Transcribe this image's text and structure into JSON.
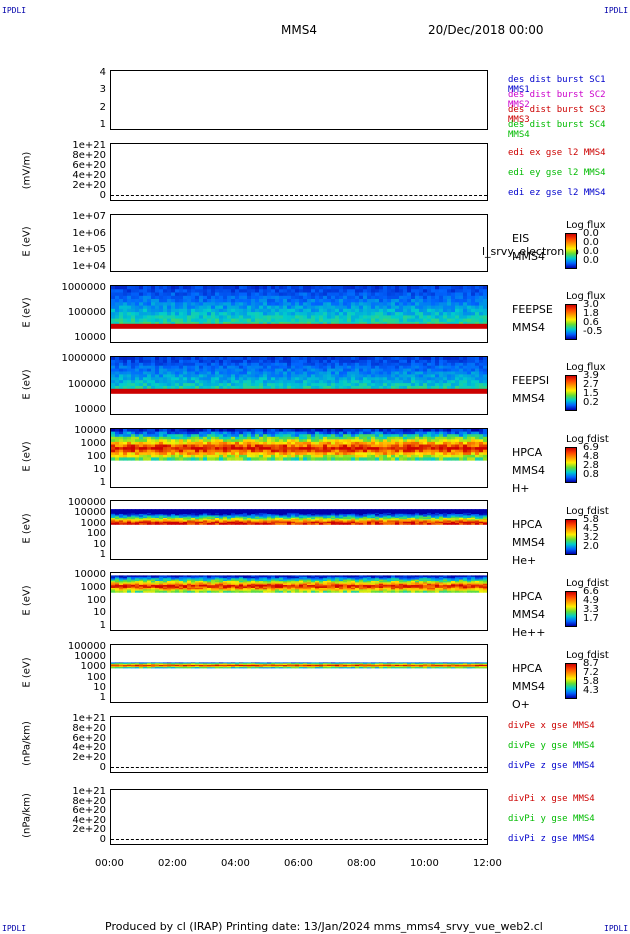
{
  "corners": {
    "tl": "IPDLI",
    "tr": "IPDLI",
    "bl": "IPDLI",
    "br": "IPDLI"
  },
  "header": {
    "spacecraft": "MMS4",
    "date": "20/Dec/2018 00:00"
  },
  "footer": {
    "text": "Produced by cl (IRAP)   Printing date: 13/Jan/2024   mms_mms4_srvy_vue_web2.cl"
  },
  "x_axis": {
    "ticks": [
      "00:00",
      "02:00",
      "04:00",
      "06:00",
      "08:00",
      "10:00",
      "12:00"
    ]
  },
  "panels": [
    {
      "id": "burst",
      "ylabel": "",
      "ticks": [
        "4",
        "3",
        "2",
        "1"
      ],
      "right_labels": [
        {
          "text": "des dist burst SC1 MMS1",
          "color": "#0000cc"
        },
        {
          "text": "des dist burst SC2 MMS2",
          "color": "#cc00cc"
        },
        {
          "text": "des dist burst SC3 MMS3",
          "color": "#cc0000"
        },
        {
          "text": "des dist burst SC4 MMS4",
          "color": "#00bb00"
        }
      ]
    },
    {
      "id": "edi",
      "ylabel": "(mV/m)",
      "ticks": [
        "1e+21",
        "8e+20",
        "6e+20",
        "4e+20",
        "2e+20",
        "0"
      ],
      "right_labels": [
        {
          "text": "edi ex gse l2 MMS4",
          "color": "#cc0000"
        },
        {
          "text": "edi ey gse l2 MMS4",
          "color": "#00bb00"
        },
        {
          "text": "edi ez gse l2 MMS4",
          "color": "#0000cc"
        }
      ]
    },
    {
      "id": "eis",
      "ylabel": "E (eV)",
      "ticks": [
        "1e+07",
        "1e+06",
        "1e+05",
        "1e+04"
      ],
      "instrument": [
        "EIS",
        "MMS4"
      ],
      "overlay_text": "l_srvy_electron to",
      "cbar_title": "Log flux",
      "cbar_values": [
        "0.0",
        "0.0",
        "0.0",
        "0.0"
      ]
    },
    {
      "id": "feepse",
      "ylabel": "E (eV)",
      "ticks": [
        "1000000",
        "100000",
        "10000"
      ],
      "instrument": [
        "FEEPSE",
        "MMS4"
      ],
      "cbar_title": "Log flux",
      "cbar_values": [
        "3.0",
        "1.8",
        "0.6",
        "-0.5"
      ]
    },
    {
      "id": "feepsi",
      "ylabel": "E (eV)",
      "ticks": [
        "1000000",
        "100000",
        "10000"
      ],
      "instrument": [
        "FEEPSI",
        "MMS4"
      ],
      "cbar_title": "Log flux",
      "cbar_values": [
        "3.9",
        "2.7",
        "1.5",
        "0.2"
      ]
    },
    {
      "id": "hpca_h",
      "ylabel": "E (eV)",
      "ticks": [
        "10000",
        "1000",
        "100",
        "10",
        "1"
      ],
      "instrument": [
        "HPCA",
        "MMS4",
        "H+"
      ],
      "cbar_title": "Log fdist",
      "cbar_values": [
        "6.9",
        "4.8",
        "2.8",
        "0.8"
      ]
    },
    {
      "id": "hpca_he",
      "ylabel": "E (eV)",
      "ticks": [
        "100000",
        "10000",
        "1000",
        "100",
        "10",
        "1"
      ],
      "instrument": [
        "HPCA",
        "MMS4",
        "He+"
      ],
      "cbar_title": "Log fdist",
      "cbar_values": [
        "5.8",
        "4.5",
        "3.2",
        "2.0"
      ]
    },
    {
      "id": "hpca_hepp",
      "ylabel": "E (eV)",
      "ticks": [
        "10000",
        "1000",
        "100",
        "10",
        "1"
      ],
      "instrument": [
        "HPCA",
        "MMS4",
        "He++"
      ],
      "cbar_title": "Log fdist",
      "cbar_values": [
        "6.6",
        "4.9",
        "3.3",
        "1.7"
      ]
    },
    {
      "id": "hpca_o",
      "ylabel": "E (eV)",
      "ticks": [
        "100000",
        "10000",
        "1000",
        "100",
        "10",
        "1"
      ],
      "instrument": [
        "HPCA",
        "MMS4",
        "O+"
      ],
      "cbar_title": "Log fdist",
      "cbar_values": [
        "8.7",
        "7.2",
        "5.8",
        "4.3"
      ]
    },
    {
      "id": "divpe",
      "ylabel": "(nPa/km)",
      "ticks": [
        "1e+21",
        "8e+20",
        "6e+20",
        "4e+20",
        "2e+20",
        "0"
      ],
      "right_labels": [
        {
          "text": "divPe x gse MMS4",
          "color": "#cc0000"
        },
        {
          "text": "divPe y gse MMS4",
          "color": "#00bb00"
        },
        {
          "text": "divPe z gse MMS4",
          "color": "#0000cc"
        }
      ]
    },
    {
      "id": "divpi",
      "ylabel": "(nPa/km)",
      "ticks": [
        "1e+21",
        "8e+20",
        "6e+20",
        "4e+20",
        "2e+20",
        "0"
      ],
      "right_labels": [
        {
          "text": "divPi x gse MMS4",
          "color": "#cc0000"
        },
        {
          "text": "divPi y gse MMS4",
          "color": "#00bb00"
        },
        {
          "text": "divPi z gse MMS4",
          "color": "#0000cc"
        }
      ]
    }
  ],
  "chart_data": {
    "type": "heatmap",
    "x_range": [
      "00:00",
      "12:00"
    ],
    "spectrograms": [
      {
        "panel": "feepse",
        "scale": "log",
        "ylim": [
          10000,
          1000000
        ],
        "band_energy_eV": [
          40000,
          1000000
        ],
        "red_band_energy_eV": 35000
      },
      {
        "panel": "feepsi",
        "scale": "log",
        "ylim": [
          10000,
          1000000
        ],
        "band_energy_eV": [
          60000,
          1000000
        ],
        "red_band_energy_eV": 60000
      },
      {
        "panel": "hpca_h",
        "scale": "log",
        "ylim": [
          1,
          20000
        ],
        "band_energy_eV": [
          100,
          20000
        ],
        "peak_energy_eV": 700
      },
      {
        "panel": "hpca_he",
        "scale": "log",
        "ylim": [
          1,
          100000
        ],
        "band_energy_eV": [
          1000,
          20000
        ],
        "peak_energy_eV": 1200
      },
      {
        "panel": "hpca_hepp",
        "scale": "log",
        "ylim": [
          1,
          15000
        ],
        "band_energy_eV": [
          600,
          10000
        ],
        "peak_energy_eV": 1500
      },
      {
        "panel": "hpca_o",
        "scale": "log",
        "ylim": [
          1,
          100000
        ],
        "band_energy_eV": [
          1000,
          3000
        ],
        "peak_energy_eV": 1500
      }
    ]
  }
}
